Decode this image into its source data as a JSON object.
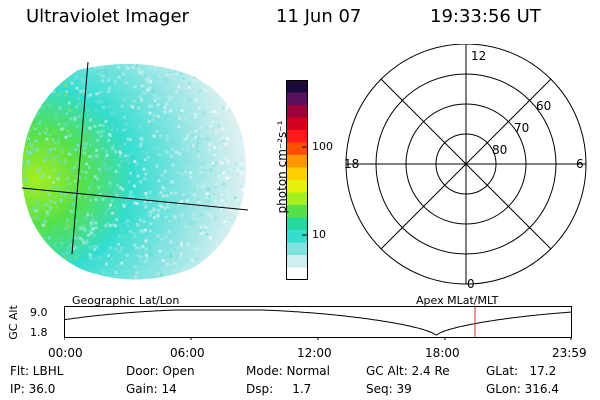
{
  "header": {
    "title": "Ultraviolet Imager",
    "date": "11 Jun 07",
    "time": "19:33:56 UT"
  },
  "colorbar": {
    "unit_label": "photon cm⁻²s⁻¹",
    "ticks": [
      "100",
      "10"
    ],
    "colors": [
      "#ffffff",
      "#cfeef0",
      "#7fe3e0",
      "#33ddd0",
      "#22d9a0",
      "#55e04a",
      "#a6ee1e",
      "#e6f00a",
      "#ffd000",
      "#ff9500",
      "#ff5000",
      "#ff1a1a",
      "#d4001e",
      "#a0003a",
      "#5a1060",
      "#1a0b3a"
    ]
  },
  "polar": {
    "labels": {
      "top": "12",
      "right": "6",
      "left": "18",
      "bottom": "0"
    },
    "rings": [
      "60",
      "70",
      "80"
    ]
  },
  "timeline": {
    "left_title": "Geographic Lat/Lon",
    "right_title": "Apex  MLat/MLT",
    "ylabel": "GC Alt",
    "y_ticks": [
      "9.0",
      "1.8"
    ],
    "x_ticks": [
      "00:00",
      "06:00",
      "12:00",
      "18:00",
      "23:59"
    ],
    "marker_color": "#cc3333"
  },
  "status": {
    "flt": "Flt: LBHL",
    "ip": "IP: 36.0",
    "door": "Door: Open",
    "gain": "Gain: 14",
    "mode": "Mode: Normal",
    "dsp": "Dsp:     1.7",
    "gcalt": "GC Alt: 2.4 Re",
    "seq": "Seq: 39",
    "glat": "GLat:   17.2",
    "glon": "GLon: 316.4"
  }
}
